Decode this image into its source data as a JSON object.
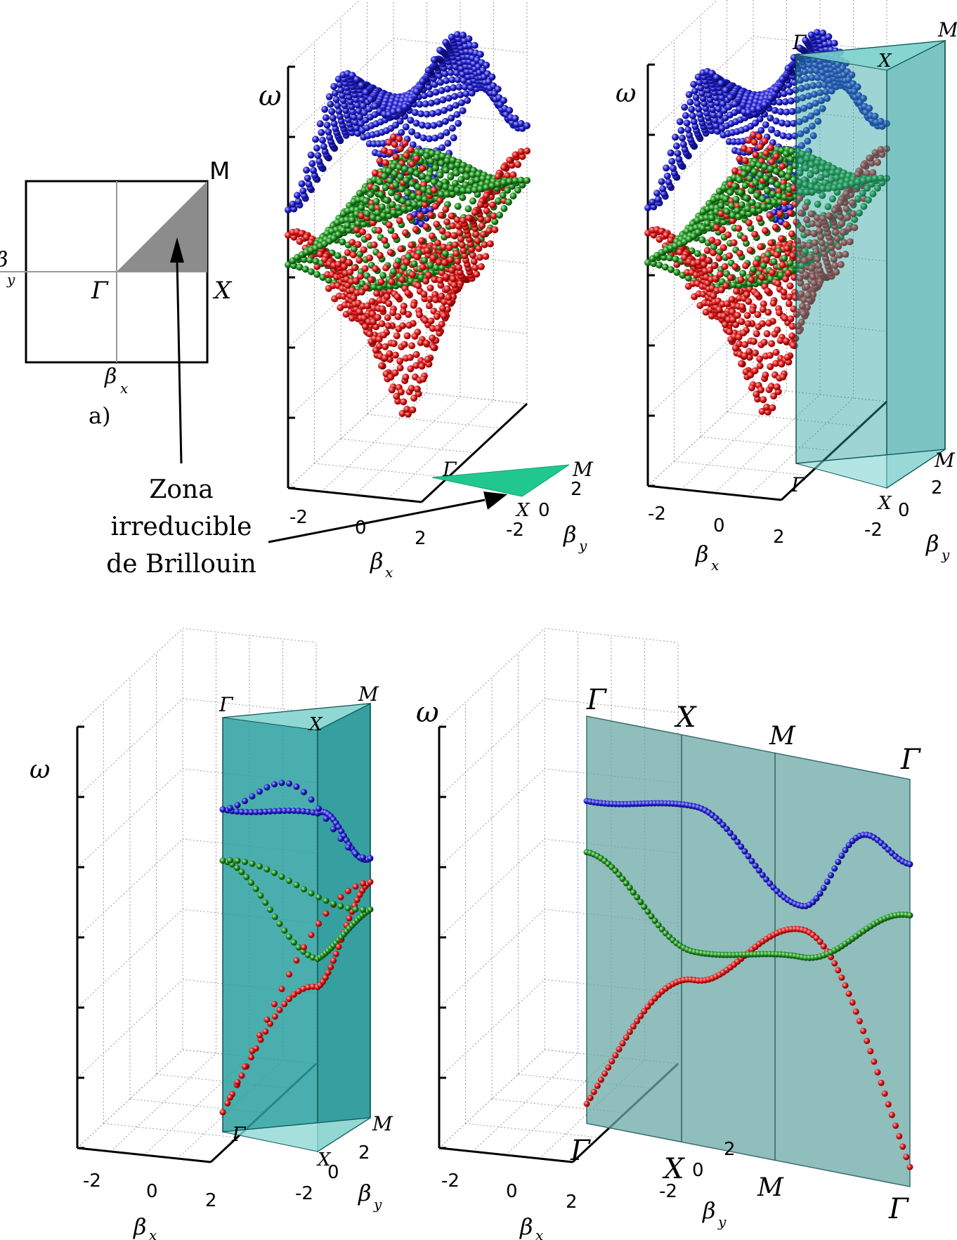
{
  "panel_a": {
    "corner_label": "M",
    "center_label": "Γ",
    "right_label": "X",
    "left_axis_label": "β",
    "left_axis_sub": "y",
    "bottom_axis_label": "β",
    "bottom_axis_sub": "x",
    "panel_tag": "a)",
    "annotation_lines": [
      "Zona",
      "irreducible",
      "de Brillouin"
    ]
  },
  "panel_b": {
    "z_label": "ω",
    "x_label": "β",
    "x_sub": "x",
    "y_label": "β",
    "y_sub": "y",
    "x_ticks": [
      "-2",
      "0",
      "2"
    ],
    "y_ticks": [
      "-2",
      "0",
      "2"
    ],
    "ibz_labels": [
      "Γ",
      "X",
      "M"
    ]
  },
  "panel_c": {
    "z_label": "ω",
    "x_label": "β",
    "x_sub": "x",
    "y_label": "β",
    "y_sub": "y",
    "x_ticks": [
      "-2",
      "0",
      "2"
    ],
    "y_ticks": [
      "-2",
      "0",
      "2"
    ],
    "prism_labels": [
      "Γ",
      "X",
      "M",
      "Γ",
      "X",
      "M"
    ]
  },
  "panel_d": {
    "z_label": "ω",
    "x_label": "β",
    "x_sub": "x",
    "y_label": "β",
    "y_sub": "y",
    "x_ticks": [
      "-2",
      "0",
      "2"
    ],
    "y_ticks": [
      "-2",
      "0",
      "2"
    ],
    "prism_labels": [
      "Γ",
      "X",
      "M",
      "Γ",
      "X",
      "M"
    ]
  },
  "panel_e": {
    "z_label": "ω",
    "x_label": "β",
    "x_sub": "x",
    "y_label": "β",
    "y_sub": "y",
    "x_ticks": [
      "-2",
      "0",
      "2"
    ],
    "y_ticks": [
      "-2",
      "0",
      "2"
    ],
    "top_labels": [
      "Γ",
      "X",
      "M",
      "Γ"
    ],
    "bottom_labels": [
      "Γ",
      "X",
      "M",
      "Γ"
    ]
  },
  "colors": {
    "band1": "#d81818",
    "band2": "#1e8a1e",
    "band3": "#2020d0",
    "ibz_fill": "#20c890",
    "prism_fill": "#2aa0a0",
    "plane_fill": "#6aa8a6"
  }
}
